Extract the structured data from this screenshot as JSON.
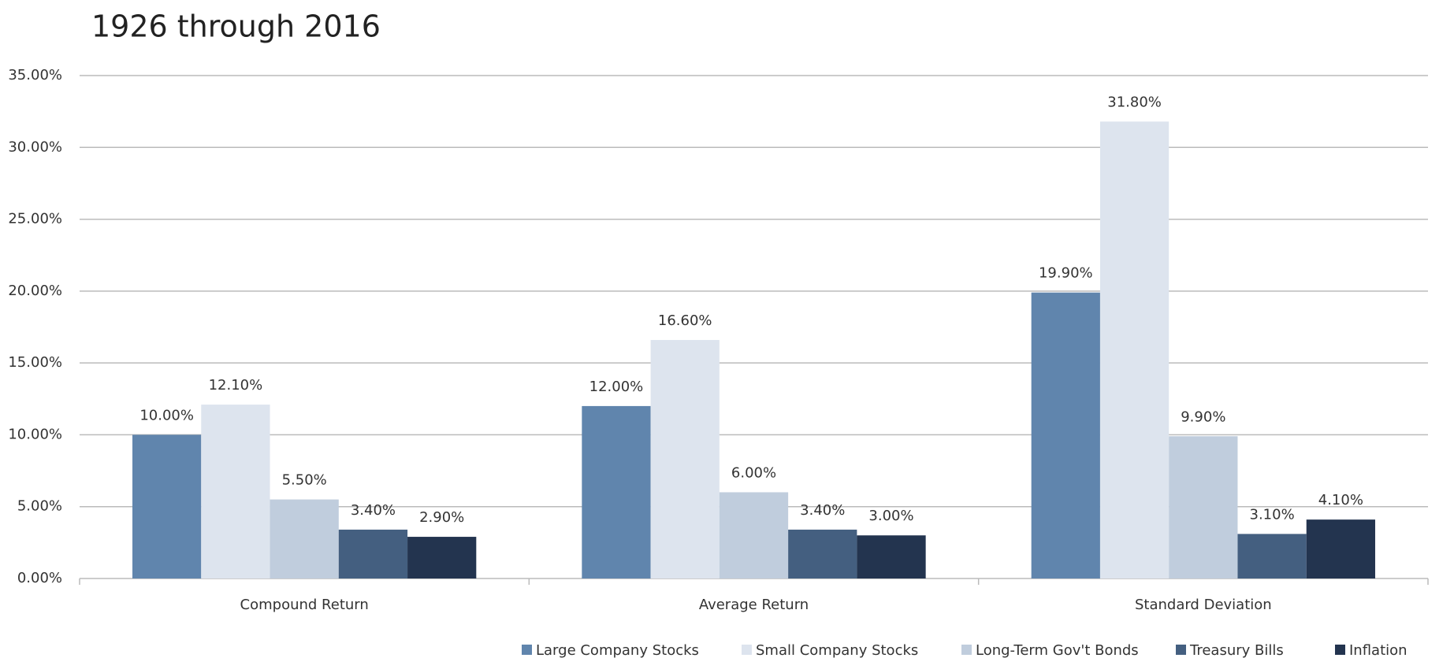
{
  "chart_data": {
    "type": "bar",
    "title": "1926 through 2016",
    "categories": [
      "Compound Return",
      "Average Return",
      "Standard Deviation"
    ],
    "series": [
      {
        "name": "Large Company Stocks",
        "color": "#6085ad",
        "values": [
          10,
          12,
          19.9
        ],
        "value_labels": [
          "10.00%",
          "12.00%",
          "19.90%"
        ]
      },
      {
        "name": "Small Company Stocks",
        "color": "#dde4ee",
        "values": [
          12.1,
          16.6,
          31.8
        ],
        "value_labels": [
          "12.10%",
          "16.60%",
          "31.80%"
        ]
      },
      {
        "name": "Long-Term Gov't Bonds",
        "color": "#c0cddd",
        "values": [
          5.5,
          6,
          9.9
        ],
        "value_labels": [
          "5.50%",
          "6.00%",
          "9.90%"
        ]
      },
      {
        "name": "Treasury Bills",
        "color": "#445f80",
        "values": [
          3.4,
          3.4,
          3.1
        ],
        "value_labels": [
          "3.40%",
          "3.40%",
          "3.10%"
        ]
      },
      {
        "name": "Inflation",
        "color": "#23344f",
        "values": [
          2.9,
          3,
          4.1
        ],
        "value_labels": [
          "2.90%",
          "3.00%",
          "4.10%"
        ]
      }
    ],
    "ylim": [
      0,
      35
    ],
    "yticks": [
      {
        "value": 0,
        "label": "0.00%"
      },
      {
        "value": 5,
        "label": "5.00%"
      },
      {
        "value": 10,
        "label": "10.00%"
      },
      {
        "value": 15,
        "label": "15.00%"
      },
      {
        "value": 20,
        "label": "20.00%"
      },
      {
        "value": 25,
        "label": "25.00%"
      },
      {
        "value": 30,
        "label": "30.00%"
      },
      {
        "value": 35,
        "label": "35.00%"
      }
    ],
    "grid": true,
    "legend": "bottom"
  }
}
